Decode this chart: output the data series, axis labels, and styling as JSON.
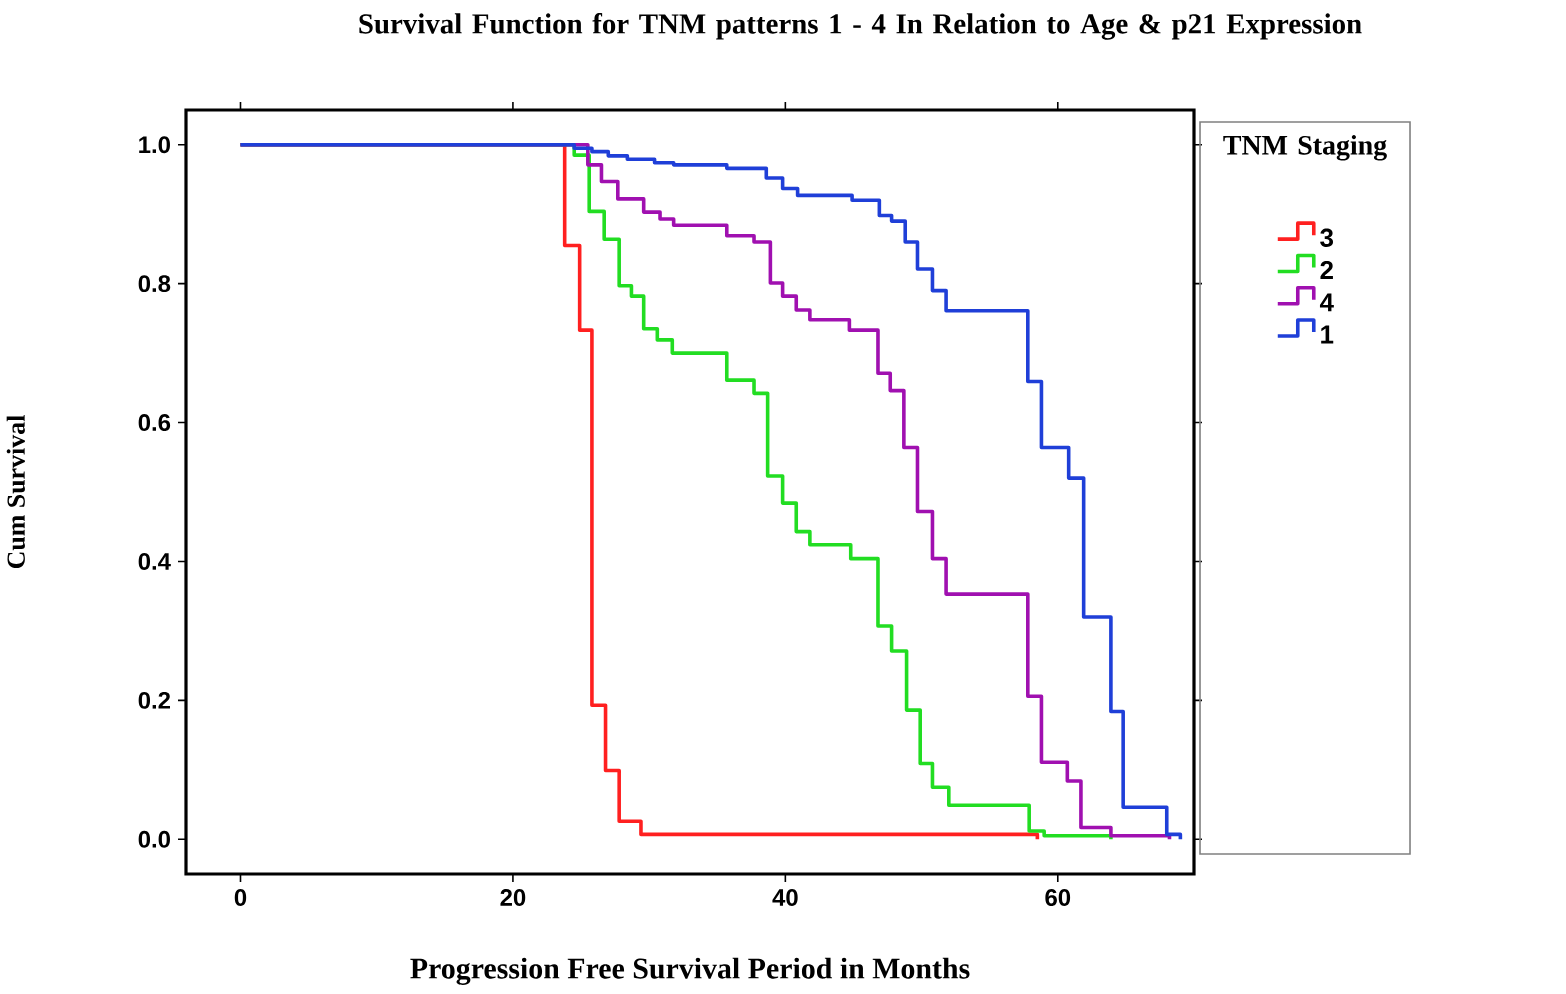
{
  "chart_data": {
    "type": "step",
    "title": "Survival Function for TNM patterns 1 - 4 In Relation to Age & p21 Expression",
    "xlabel": "Progression Free Survival Period in Months",
    "ylabel": "Cum Survival",
    "legend_title": "TNM Staging",
    "xlim": [
      -4,
      70
    ],
    "ylim": [
      -0.05,
      1.05
    ],
    "xticks": [
      0,
      20,
      40,
      60
    ],
    "yticks": [
      {
        "value": 0,
        "label": "0.0"
      },
      {
        "value": 0.2,
        "label": "0.2"
      },
      {
        "value": 0.4,
        "label": "0.4"
      },
      {
        "value": 0.6,
        "label": "0.6"
      },
      {
        "value": 0.8,
        "label": "0.8"
      },
      {
        "value": 1,
        "label": "1.0"
      }
    ],
    "grid": false,
    "legend": "right",
    "marker": "none",
    "line_style": "solid",
    "series": [
      {
        "name": "3",
        "color": "#ff2020",
        "x": [
          0,
          23.8,
          24.9,
          25.8,
          26.8,
          27.8,
          29.4,
          58.5
        ],
        "values": [
          1,
          0.855,
          0.733,
          0.193,
          0.099,
          0.026,
          0.007,
          0.0
        ]
      },
      {
        "name": "2",
        "color": "#22dd22",
        "x": [
          0,
          24.5,
          25.6,
          26.7,
          27.8,
          28.7,
          29.6,
          30.6,
          31.7,
          35.7,
          37.7,
          38.7,
          39.8,
          40.8,
          41.8,
          44.8,
          46.8,
          47.8,
          48.9,
          49.9,
          50.8,
          52.0,
          57.9,
          59.0,
          63.9
        ],
        "values": [
          1,
          0.985,
          0.904,
          0.864,
          0.797,
          0.782,
          0.735,
          0.719,
          0.7,
          0.661,
          0.642,
          0.523,
          0.484,
          0.443,
          0.424,
          0.404,
          0.307,
          0.271,
          0.186,
          0.109,
          0.075,
          0.049,
          0.012,
          0.005,
          0.0
        ]
      },
      {
        "name": "4",
        "color": "#a010b0",
        "x": [
          0,
          25.5,
          26.5,
          27.7,
          29.6,
          30.8,
          31.8,
          35.7,
          37.7,
          38.9,
          39.8,
          40.8,
          41.8,
          44.7,
          46.8,
          47.7,
          48.7,
          49.7,
          50.8,
          51.8,
          57.8,
          58.8,
          60.7,
          61.7,
          63.9,
          68.2
        ],
        "values": [
          1,
          0.971,
          0.947,
          0.922,
          0.903,
          0.893,
          0.884,
          0.869,
          0.86,
          0.801,
          0.782,
          0.762,
          0.748,
          0.733,
          0.671,
          0.646,
          0.564,
          0.472,
          0.404,
          0.353,
          0.206,
          0.111,
          0.084,
          0.017,
          0.005,
          0.0
        ]
      },
      {
        "name": "1",
        "color": "#1f3fd8",
        "x": [
          0,
          24.5,
          25.8,
          27.0,
          28.4,
          30.4,
          31.8,
          35.7,
          38.6,
          39.8,
          40.9,
          44.9,
          46.9,
          47.8,
          48.8,
          49.7,
          50.8,
          51.8,
          57.8,
          58.8,
          60.8,
          61.9,
          63.9,
          64.8,
          68.0,
          69.0
        ],
        "values": [
          1,
          0.995,
          0.99,
          0.984,
          0.979,
          0.974,
          0.971,
          0.966,
          0.952,
          0.937,
          0.927,
          0.92,
          0.898,
          0.89,
          0.86,
          0.821,
          0.79,
          0.761,
          0.659,
          0.564,
          0.52,
          0.32,
          0.184,
          0.046,
          0.007,
          0.0
        ]
      }
    ]
  }
}
